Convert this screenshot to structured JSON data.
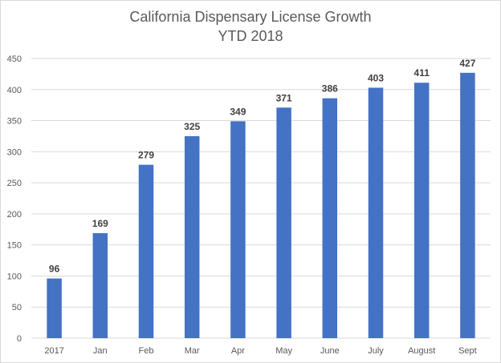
{
  "chart_data": {
    "type": "bar",
    "title": "California Dispensary License Growth",
    "subtitle": "YTD 2018",
    "categories": [
      "2017",
      "Jan",
      "Feb",
      "Mar",
      "Apr",
      "May",
      "June",
      "July",
      "August",
      "Sept"
    ],
    "values": [
      96,
      169,
      279,
      325,
      349,
      371,
      386,
      403,
      411,
      427
    ],
    "y_ticks": [
      0,
      50,
      100,
      150,
      200,
      250,
      300,
      350,
      400,
      450
    ],
    "ylim": [
      0,
      450
    ],
    "grid": true,
    "data_labels": true,
    "legend": "none",
    "colors": {
      "bar": "#4472C4",
      "grid": "#d9d9d9",
      "text": "#595959",
      "label": "#404040"
    }
  }
}
